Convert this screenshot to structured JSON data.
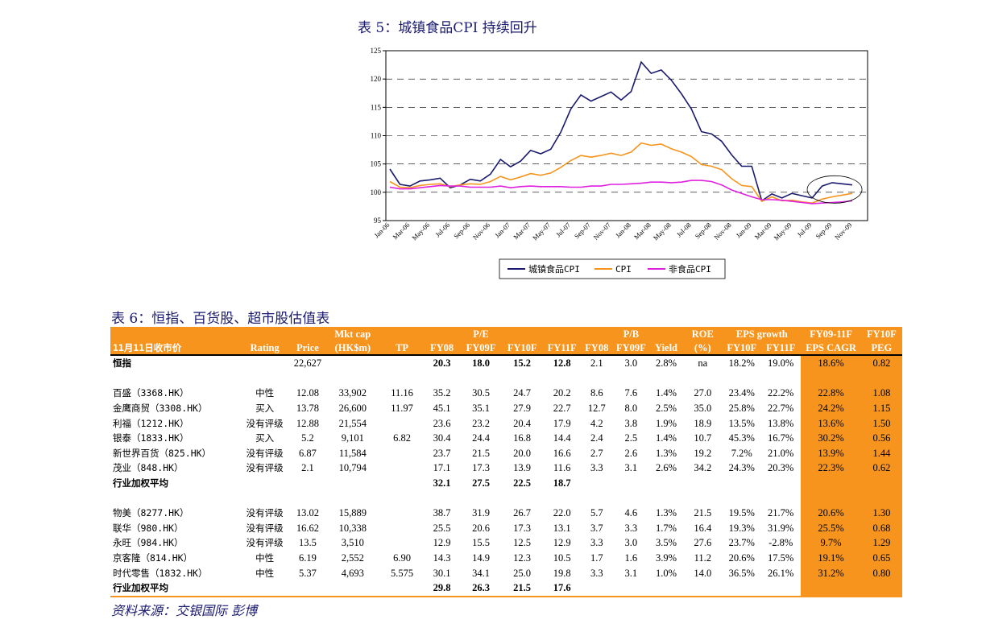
{
  "table5": {
    "title": "表 5：城镇食品CPI 持续回升"
  },
  "chart_data": {
    "type": "line",
    "title": "",
    "xlabel": "",
    "ylabel": "",
    "ylim": [
      95,
      125
    ],
    "yticks": [
      95,
      100,
      105,
      110,
      115,
      120,
      125
    ],
    "x": [
      "Jan-06",
      "Feb-06",
      "Mar-06",
      "Apr-06",
      "May-06",
      "Jun-06",
      "Jul-06",
      "Aug-06",
      "Sep-06",
      "Oct-06",
      "Nov-06",
      "Dec-06",
      "Jan-07",
      "Feb-07",
      "Mar-07",
      "Apr-07",
      "May-07",
      "Jun-07",
      "Jul-07",
      "Aug-07",
      "Sep-07",
      "Oct-07",
      "Nov-07",
      "Dec-07",
      "Jan-08",
      "Feb-08",
      "Mar-08",
      "Apr-08",
      "May-08",
      "Jun-08",
      "Jul-08",
      "Aug-08",
      "Sep-08",
      "Oct-08",
      "Nov-08",
      "Dec-08",
      "Jan-09",
      "Feb-09",
      "Mar-09",
      "Apr-09",
      "May-09",
      "Jun-09",
      "Jul-09",
      "Aug-09",
      "Sep-09",
      "Oct-09",
      "Nov-09"
    ],
    "xtick_labels": [
      "Jan-06",
      "Mar-06",
      "May-06",
      "Jul-06",
      "Sep-06",
      "Nov-06",
      "Jan-07",
      "Mar-07",
      "May-07",
      "Jul-07",
      "Sep-07",
      "Nov-07",
      "Jan-08",
      "Mar-08",
      "May-08",
      "Jul-08",
      "Sep-08",
      "Nov-08",
      "Jan-09",
      "Mar-09",
      "May-09",
      "Jul-09",
      "Sep-09",
      "Nov-09"
    ],
    "grid": "horizontal dashed",
    "legend": "bottom",
    "series": [
      {
        "name": "城镇食品CPI",
        "color": "#1a1a6e",
        "values": [
          104.1,
          101.4,
          101.1,
          102.0,
          102.2,
          102.5,
          100.8,
          101.3,
          102.3,
          102.0,
          103.2,
          105.8,
          104.5,
          105.5,
          107.4,
          106.8,
          107.6,
          110.6,
          114.7,
          117.2,
          116.1,
          116.9,
          117.7,
          116.3,
          117.8,
          123.0,
          121.0,
          121.6,
          119.8,
          117.4,
          114.7,
          110.7,
          110.3,
          109.0,
          106.6,
          104.6,
          104.6,
          98.5,
          99.7,
          99.0,
          99.8,
          99.4,
          99.0,
          101.1,
          101.7,
          101.5,
          101.3
        ]
      },
      {
        "name": "CPI",
        "color": "#f7941d",
        "values": [
          101.9,
          100.9,
          100.8,
          101.2,
          101.4,
          101.5,
          101.0,
          101.3,
          101.5,
          101.4,
          101.9,
          102.8,
          102.2,
          102.7,
          103.3,
          103.0,
          103.4,
          104.4,
          105.6,
          106.5,
          106.2,
          106.5,
          106.9,
          106.5,
          107.1,
          108.7,
          108.3,
          108.5,
          107.7,
          107.1,
          106.3,
          104.9,
          104.6,
          104.0,
          102.4,
          101.2,
          101.0,
          98.4,
          99.2,
          98.5,
          98.6,
          98.3,
          98.1,
          98.8,
          99.2,
          99.5,
          99.8
        ]
      },
      {
        "name": "非食品CPI",
        "color": "#e020e0",
        "values": [
          100.9,
          100.6,
          100.6,
          100.8,
          101.0,
          101.2,
          101.1,
          101.1,
          100.9,
          100.9,
          100.9,
          101.1,
          100.8,
          101.0,
          101.1,
          101.0,
          101.0,
          101.0,
          100.9,
          100.9,
          101.1,
          101.1,
          101.4,
          101.4,
          101.5,
          101.6,
          101.8,
          101.8,
          101.7,
          101.8,
          102.1,
          102.1,
          101.9,
          101.3,
          100.4,
          99.8,
          99.2,
          98.7,
          98.7,
          98.6,
          98.4,
          98.2,
          98.0,
          98.1,
          98.2,
          98.3,
          98.5
        ]
      }
    ]
  },
  "table6": {
    "title": "表 6：恒指、百货股、超市股估值表",
    "header1": {
      "mktcap": "Mkt cap",
      "pe": "P/E",
      "pb": "P/B",
      "roe": "ROE",
      "eps": "EPS growth",
      "cagr": "FY09-11F",
      "peg": "FY10F"
    },
    "header2": {
      "date": "11月11日收市价",
      "rating": "Rating",
      "price": "Price",
      "mktcap": "(HK$m)",
      "tp": "TP",
      "fy08": "FY08",
      "fy09f": "FY09F",
      "fy10f": "FY10F",
      "fy11f": "FY11F",
      "pbfy08": "FY08",
      "pbfy09f": "FY09F",
      "yield": "Yield",
      "roe": "(%)",
      "epsfy10f": "FY10F",
      "epsfy11f": "FY11F",
      "cagr": "EPS CAGR",
      "peg": "PEG"
    },
    "rows": [
      {
        "kind": "index",
        "name": "恒指",
        "rating": "",
        "price": "22,627",
        "mktcap": "",
        "tp": "",
        "pe08": "20.3",
        "pe09": "18.0",
        "pe10": "15.2",
        "pe11": "12.8",
        "pb08": "2.1",
        "pb09": "3.0",
        "yield": "2.8%",
        "roe": "na",
        "eps10": "18.2%",
        "eps11": "19.0%",
        "cagr": "18.6%",
        "peg": "0.82"
      },
      {
        "kind": "blank"
      },
      {
        "kind": "stock",
        "name": "百盛（3368.HK）",
        "rating": "中性",
        "price": "12.08",
        "mktcap": "33,902",
        "tp": "11.16",
        "pe08": "35.2",
        "pe09": "30.5",
        "pe10": "24.7",
        "pe11": "20.2",
        "pb08": "8.6",
        "pb09": "7.6",
        "yield": "1.4%",
        "roe": "27.0",
        "eps10": "23.4%",
        "eps11": "22.2%",
        "cagr": "22.8%",
        "peg": "1.08"
      },
      {
        "kind": "stock",
        "name": "金鹰商贸（3308.HK）",
        "rating": "买入",
        "price": "13.78",
        "mktcap": "26,600",
        "tp": "11.97",
        "pe08": "45.1",
        "pe09": "35.1",
        "pe10": "27.9",
        "pe11": "22.7",
        "pb08": "12.7",
        "pb09": "8.0",
        "yield": "2.5%",
        "roe": "35.0",
        "eps10": "25.8%",
        "eps11": "22.7%",
        "cagr": "24.2%",
        "peg": "1.15"
      },
      {
        "kind": "stock",
        "name": "利福（1212.HK）",
        "rating": "没有评级",
        "price": "12.88",
        "mktcap": "21,554",
        "tp": "",
        "pe08": "23.6",
        "pe09": "23.2",
        "pe10": "20.4",
        "pe11": "17.9",
        "pb08": "4.2",
        "pb09": "3.8",
        "yield": "1.9%",
        "roe": "18.9",
        "eps10": "13.5%",
        "eps11": "13.8%",
        "cagr": "13.6%",
        "peg": "1.50"
      },
      {
        "kind": "stock",
        "name": "银泰（1833.HK）",
        "rating": "买入",
        "price": "5.2",
        "mktcap": "9,101",
        "tp": "6.82",
        "pe08": "30.4",
        "pe09": "24.4",
        "pe10": "16.8",
        "pe11": "14.4",
        "pb08": "2.4",
        "pb09": "2.5",
        "yield": "1.4%",
        "roe": "10.7",
        "eps10": "45.3%",
        "eps11": "16.7%",
        "cagr": "30.2%",
        "peg": "0.56"
      },
      {
        "kind": "stock",
        "name": "新世界百货（825.HK）",
        "rating": "没有评级",
        "price": "6.87",
        "mktcap": "11,584",
        "tp": "",
        "pe08": "23.7",
        "pe09": "21.5",
        "pe10": "20.0",
        "pe11": "16.6",
        "pb08": "2.7",
        "pb09": "2.6",
        "yield": "1.3%",
        "roe": "19.2",
        "eps10": "7.2%",
        "eps11": "21.0%",
        "cagr": "13.9%",
        "peg": "1.44"
      },
      {
        "kind": "stock",
        "name": "茂业（848.HK）",
        "rating": "没有评级",
        "price": "2.1",
        "mktcap": "10,794",
        "tp": "",
        "pe08": "17.1",
        "pe09": "17.3",
        "pe10": "13.9",
        "pe11": "11.6",
        "pb08": "3.3",
        "pb09": "3.1",
        "yield": "2.6%",
        "roe": "34.2",
        "eps10": "24.3%",
        "eps11": "20.3%",
        "cagr": "22.3%",
        "peg": "0.62"
      },
      {
        "kind": "avg",
        "name": "行业加权平均",
        "pe08": "32.1",
        "pe09": "27.5",
        "pe10": "22.5",
        "pe11": "18.7"
      },
      {
        "kind": "blank"
      },
      {
        "kind": "stock",
        "name": "物美（8277.HK）",
        "rating": "没有评级",
        "price": "13.02",
        "mktcap": "15,889",
        "tp": "",
        "pe08": "38.7",
        "pe09": "31.9",
        "pe10": "26.7",
        "pe11": "22.0",
        "pb08": "5.7",
        "pb09": "4.6",
        "yield": "1.3%",
        "roe": "21.5",
        "eps10": "19.5%",
        "eps11": "21.7%",
        "cagr": "20.6%",
        "peg": "1.30"
      },
      {
        "kind": "stock",
        "name": "联华（980.HK）",
        "rating": "没有评级",
        "price": "16.62",
        "mktcap": "10,338",
        "tp": "",
        "pe08": "25.5",
        "pe09": "20.6",
        "pe10": "17.3",
        "pe11": "13.1",
        "pb08": "3.7",
        "pb09": "3.3",
        "yield": "1.7%",
        "roe": "16.4",
        "eps10": "19.3%",
        "eps11": "31.9%",
        "cagr": "25.5%",
        "peg": "0.68"
      },
      {
        "kind": "stock",
        "name": "永旺（984.HK）",
        "rating": "没有评级",
        "price": "13.5",
        "mktcap": "3,510",
        "tp": "",
        "pe08": "12.9",
        "pe09": "15.5",
        "pe10": "12.5",
        "pe11": "12.9",
        "pb08": "3.3",
        "pb09": "3.0",
        "yield": "3.5%",
        "roe": "27.6",
        "eps10": "23.7%",
        "eps11": "-2.8%",
        "cagr": "9.7%",
        "peg": "1.29"
      },
      {
        "kind": "stock",
        "name": "京客隆（814.HK）",
        "rating": "中性",
        "price": "6.19",
        "mktcap": "2,552",
        "tp": "6.90",
        "pe08": "14.3",
        "pe09": "14.9",
        "pe10": "12.3",
        "pe11": "10.5",
        "pb08": "1.7",
        "pb09": "1.6",
        "yield": "3.9%",
        "roe": "11.2",
        "eps10": "20.6%",
        "eps11": "17.5%",
        "cagr": "19.1%",
        "peg": "0.65"
      },
      {
        "kind": "stock",
        "name": "时代零售（1832.HK）",
        "rating": "中性",
        "price": "5.37",
        "mktcap": "4,693",
        "tp": "5.575",
        "pe08": "30.1",
        "pe09": "34.1",
        "pe10": "25.0",
        "pe11": "19.8",
        "pb08": "3.3",
        "pb09": "3.1",
        "yield": "1.0%",
        "roe": "14.0",
        "eps10": "36.5%",
        "eps11": "26.1%",
        "cagr": "31.2%",
        "peg": "0.80"
      },
      {
        "kind": "avg",
        "name": "行业加权平均",
        "pe08": "29.8",
        "pe09": "26.3",
        "pe10": "21.5",
        "pe11": "17.6"
      }
    ]
  },
  "source": "资料来源：交银国际 彭博"
}
